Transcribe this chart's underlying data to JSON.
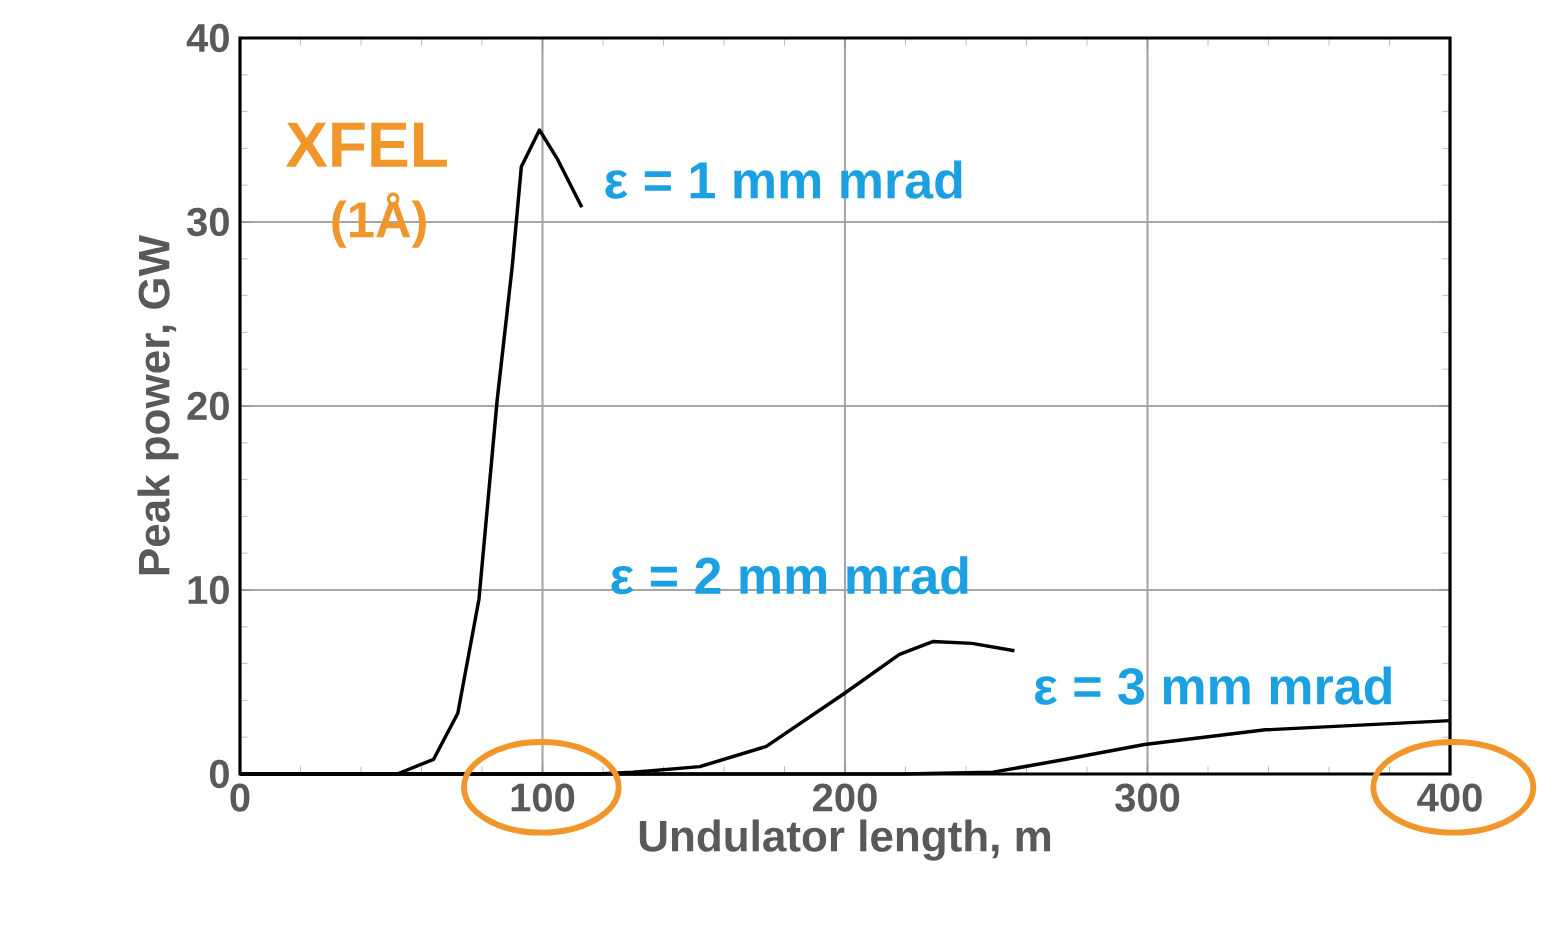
{
  "chart_data": {
    "type": "line",
    "xlabel": "Undulator length, m",
    "ylabel": "Peak power, GW",
    "xlim": [
      0,
      400
    ],
    "ylim": [
      0,
      40
    ],
    "xticks": [
      0,
      100,
      200,
      300,
      400
    ],
    "yticks": [
      0,
      10,
      20,
      30,
      40
    ],
    "grid": true,
    "legend": false,
    "marker": "none",
    "line_style": "solid",
    "annotations": [
      "XFEL",
      "(1Å)"
    ],
    "series": [
      {
        "name": "ε = 1 mm mrad",
        "color": "#000000",
        "x": [
          0,
          52,
          64,
          72,
          79,
          85,
          90,
          93,
          99,
          105,
          113
        ],
        "values": [
          0,
          0,
          0.8,
          3.3,
          9.5,
          20.3,
          27.6,
          33,
          35,
          33.4,
          30.8
        ]
      },
      {
        "name": "ε = 2 mm mrad",
        "color": "#000000",
        "x": [
          0,
          118,
          130,
          152,
          174,
          200,
          218,
          229,
          242,
          256
        ],
        "values": [
          0,
          0,
          0.1,
          0.4,
          1.5,
          4.4,
          6.5,
          7.2,
          7.1,
          6.7
        ]
      },
      {
        "name": "ε = 3 mm mrad",
        "color": "#000000",
        "x": [
          0,
          219,
          249,
          273,
          299,
          339,
          400
        ],
        "values": [
          0,
          0,
          0.1,
          0.8,
          1.6,
          2.4,
          2.9
        ]
      }
    ]
  }
}
